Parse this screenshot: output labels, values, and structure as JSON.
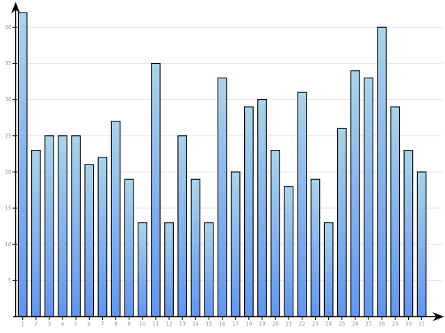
{
  "chart_data": {
    "type": "bar",
    "title": "",
    "subtitle": "",
    "xlabel": "",
    "ylabel": "",
    "categories": [
      "1",
      "2",
      "3",
      "4",
      "5",
      "6",
      "7",
      "8",
      "9",
      "10",
      "11",
      "12",
      "13",
      "14",
      "15",
      "16",
      "17",
      "18",
      "19",
      "20",
      "21",
      "22",
      "23",
      "24",
      "25",
      "26",
      "27",
      "28",
      "29",
      "30",
      "31"
    ],
    "values": [
      42,
      23,
      25,
      25,
      25,
      21,
      22,
      27,
      19,
      13,
      35,
      13,
      25,
      19,
      13,
      33,
      20,
      29,
      30,
      23,
      18,
      31,
      19,
      13,
      26,
      34,
      33,
      40,
      29,
      23,
      20
    ],
    "ylim": [
      0,
      43
    ],
    "yticks": [
      5,
      10,
      15,
      20,
      25,
      30,
      35,
      40
    ],
    "grid": "horizontal",
    "legend": "none",
    "axes_arrows": true,
    "colors": {
      "bar_gradient_top": "#abd3e8",
      "bar_gradient_bottom": "#6495ed",
      "bar_border": "#000000",
      "gridline": "#e6e6e6",
      "axis": "#000000",
      "tick_label": "#999999",
      "background": "#ffffff"
    }
  }
}
